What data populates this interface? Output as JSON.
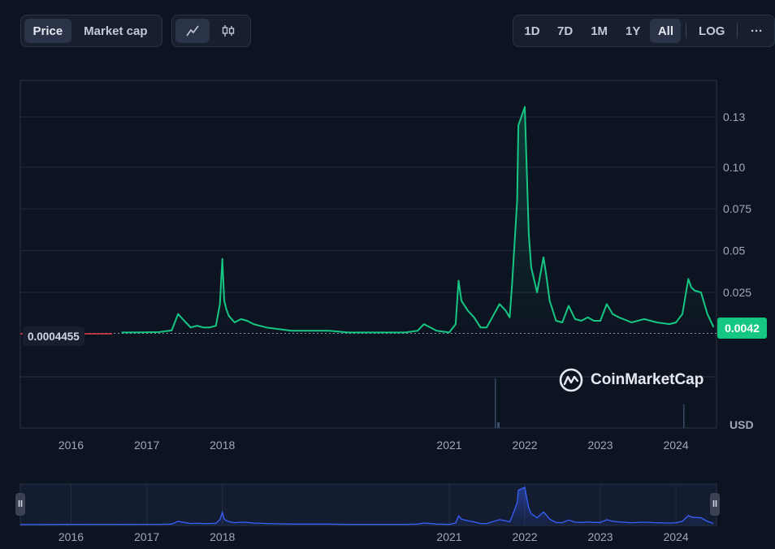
{
  "toolbar": {
    "metric_tabs": [
      {
        "label": "Price",
        "active": true
      },
      {
        "label": "Market cap",
        "active": false
      }
    ],
    "chart_type_icons": [
      {
        "icon": "line-chart-icon",
        "active": true
      },
      {
        "icon": "candlestick-icon",
        "active": false
      }
    ],
    "ranges": [
      {
        "label": "1D",
        "active": false
      },
      {
        "label": "7D",
        "active": false
      },
      {
        "label": "1M",
        "active": false
      },
      {
        "label": "1Y",
        "active": false
      },
      {
        "label": "All",
        "active": true
      }
    ],
    "log_label": "LOG",
    "more_label": "···"
  },
  "start_price_label": "0.0004455",
  "last_price_label": "0.0042",
  "currency_label": "USD",
  "watermark_text": "CoinMarketCap",
  "colors": {
    "line": "#16c784",
    "line_below_start": "#ea3943",
    "navigator": "#3861fb",
    "background": "#0d1421"
  },
  "chart_data": {
    "type": "line",
    "title": "",
    "xlabel": "",
    "ylabel": "USD",
    "x_ticks": [
      "2016",
      "2017",
      "2018",
      "2021",
      "2022",
      "2023",
      "2024"
    ],
    "y_ticks": [
      0.025,
      0.05,
      0.075,
      0.1,
      0.13
    ],
    "ylim": [
      0,
      0.14
    ],
    "grid": true,
    "baseline": 0.0004455,
    "last_value": 0.0042,
    "series": [
      {
        "name": "",
        "x": [
          "2015-05",
          "2015-08",
          "2015-12",
          "2016-03",
          "2016-06",
          "2016-09",
          "2016-12",
          "2017-03",
          "2017-05",
          "2017-06",
          "2017-07",
          "2017-08",
          "2017-09",
          "2017-10",
          "2017-11",
          "2017-12",
          "2017-12-20",
          "2018-01",
          "2018-01-10",
          "2018-01-20",
          "2018-02",
          "2018-03",
          "2018-04",
          "2018-05",
          "2018-06",
          "2018-08",
          "2018-10",
          "2018-12",
          "2019-03",
          "2019-06",
          "2019-09",
          "2019-12",
          "2020-03",
          "2020-06",
          "2020-08",
          "2020-09",
          "2020-11",
          "2021-01",
          "2021-02",
          "2021-02-15",
          "2021-03",
          "2021-04",
          "2021-05",
          "2021-06",
          "2021-07",
          "2021-08",
          "2021-09",
          "2021-10",
          "2021-10-20",
          "2021-11",
          "2021-11-25",
          "2021-12",
          "2021-12-15",
          "2022-01",
          "2022-01-10",
          "2022-01-20",
          "2022-02",
          "2022-03",
          "2022-04",
          "2022-04-15",
          "2022-05",
          "2022-06",
          "2022-07",
          "2022-08",
          "2022-09",
          "2022-10",
          "2022-11",
          "2022-12",
          "2023-01",
          "2023-02",
          "2023-03",
          "2023-04",
          "2023-06",
          "2023-08",
          "2023-10",
          "2023-12",
          "2024-01",
          "2024-02",
          "2024-03",
          "2024-03-15",
          "2024-04",
          "2024-05",
          "2024-06",
          "2024-07"
        ],
        "values": [
          0.0004,
          0.0004,
          0.0008,
          0.0009,
          0.0012,
          0.001,
          0.0011,
          0.0012,
          0.0022,
          0.012,
          0.008,
          0.004,
          0.005,
          0.004,
          0.004,
          0.005,
          0.018,
          0.045,
          0.02,
          0.015,
          0.011,
          0.007,
          0.009,
          0.008,
          0.006,
          0.004,
          0.003,
          0.002,
          0.002,
          0.002,
          0.001,
          0.001,
          0.001,
          0.001,
          0.002,
          0.006,
          0.002,
          0.001,
          0.006,
          0.032,
          0.02,
          0.014,
          0.01,
          0.004,
          0.004,
          0.011,
          0.018,
          0.014,
          0.01,
          0.031,
          0.08,
          0.125,
          0.13,
          0.136,
          0.1,
          0.06,
          0.04,
          0.025,
          0.046,
          0.035,
          0.02,
          0.008,
          0.007,
          0.017,
          0.009,
          0.008,
          0.01,
          0.008,
          0.008,
          0.018,
          0.012,
          0.01,
          0.007,
          0.009,
          0.007,
          0.006,
          0.007,
          0.012,
          0.033,
          0.028,
          0.026,
          0.025,
          0.012,
          0.0042
        ]
      }
    ]
  }
}
